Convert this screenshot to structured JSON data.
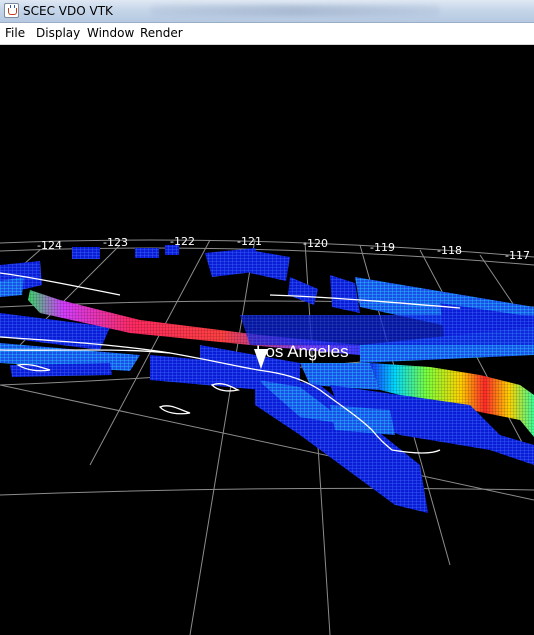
{
  "window": {
    "title": "SCEC VDO VTK"
  },
  "menu": {
    "items": [
      "File",
      "Display",
      "Window",
      "Render"
    ]
  },
  "viewport": {
    "longitudes": [
      "-124",
      "-123",
      "-122",
      "-121",
      "-120",
      "-119",
      "-118",
      "-117"
    ],
    "city": {
      "label": "Los Angeles"
    }
  },
  "colors": {
    "background": "#000000",
    "grid": "#9a9a9a",
    "coastline": "#ffffff",
    "fault_low": "#0a1fff",
    "fault_mid": "#00e0ff",
    "fault_high": "#ffd400",
    "fault_peak": "#ff2a2a"
  }
}
